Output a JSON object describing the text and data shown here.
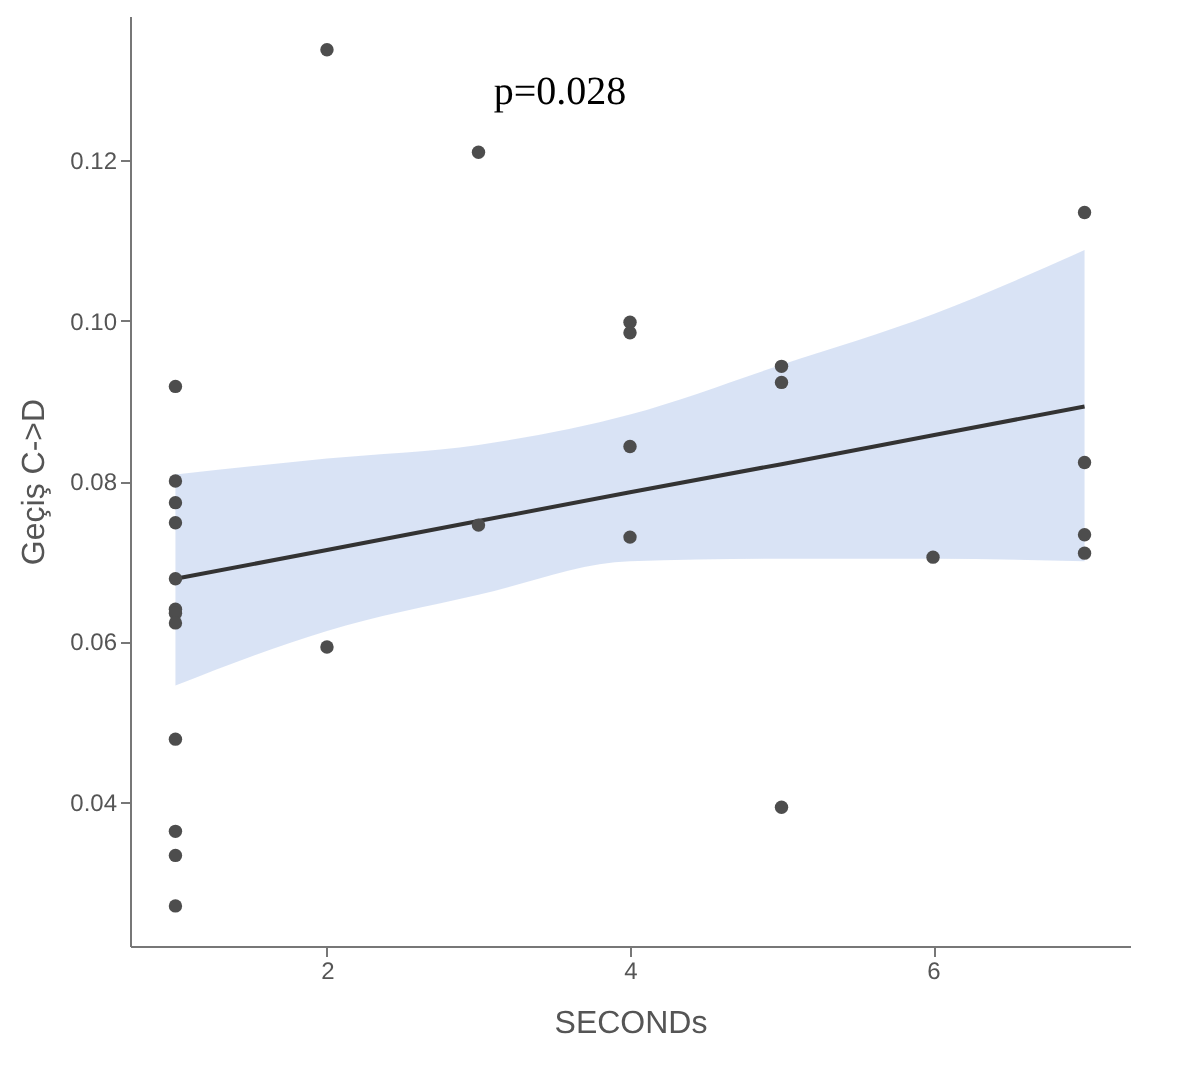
{
  "chart_data": {
    "type": "scatter",
    "xlabel": "SECONDs",
    "ylabel": "Geçiş C->D",
    "annotations": [
      "p=0.028"
    ],
    "series": [
      {
        "type": "scatter",
        "color": "#4d4d4d",
        "x": [
          1,
          1,
          1,
          1,
          1,
          1,
          1,
          1,
          1,
          1,
          1,
          1,
          2,
          2,
          3,
          3,
          4,
          4,
          4,
          4,
          5,
          5,
          5,
          6,
          7,
          7,
          7,
          7
        ],
        "values": [
          0.0918,
          0.08,
          0.0773,
          0.0748,
          0.0678,
          0.064,
          0.0635,
          0.0623,
          0.0478,
          0.0363,
          0.0333,
          0.027,
          0.1338,
          0.0593,
          0.121,
          0.0745,
          0.0998,
          0.0985,
          0.0843,
          0.073,
          0.0943,
          0.0923,
          0.0393,
          0.0705,
          0.1135,
          0.0823,
          0.0733,
          0.071
        ]
      },
      {
        "type": "line",
        "color": "#333333",
        "marker": "none",
        "x": [
          1,
          2,
          3,
          4,
          5,
          6,
          7
        ],
        "values": [
          0.0678,
          0.0714,
          0.075,
          0.0786,
          0.0821,
          0.0857,
          0.0893
        ],
        "lower": [
          0.0545,
          0.0613,
          0.0658,
          0.07,
          0.0703,
          0.0703,
          0.07
        ],
        "upper": [
          0.0808,
          0.0828,
          0.0845,
          0.0883,
          0.0945,
          0.1008,
          0.1088
        ]
      }
    ],
    "xlim": [
      0.7,
      7.3
    ],
    "xticks": [
      2,
      4,
      6
    ],
    "ylim": [
      0.022,
      0.138
    ],
    "yticks": [
      0.04,
      0.06,
      0.08,
      {
        "value": 0.1,
        "label": "0.10"
      },
      0.12
    ],
    "marker": "circle",
    "line_style": "solid"
  }
}
